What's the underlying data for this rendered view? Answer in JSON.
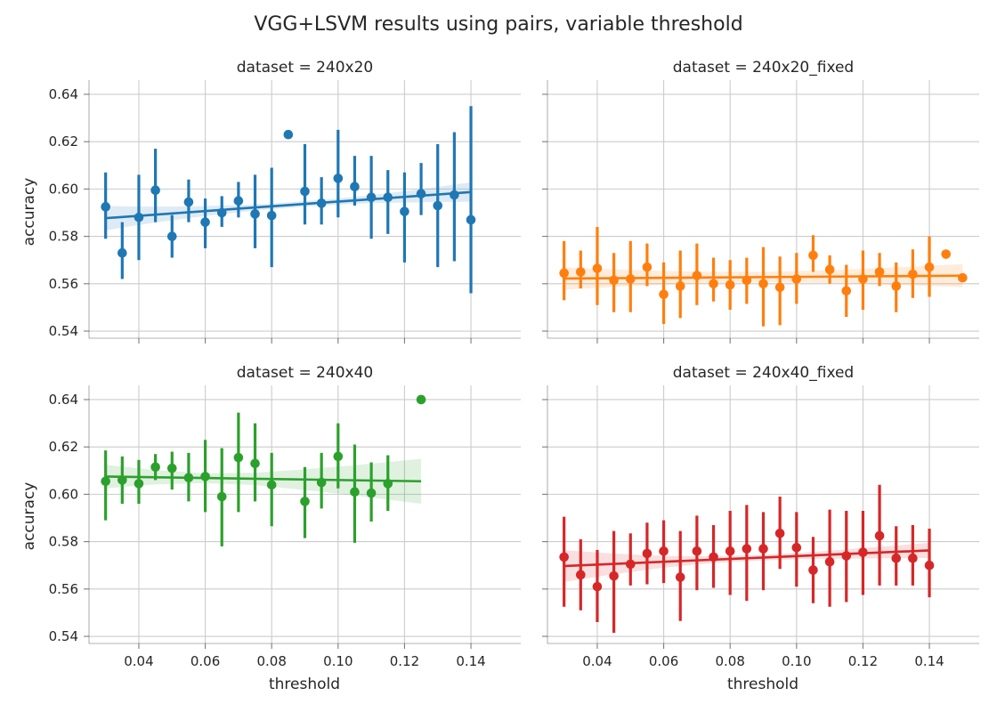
{
  "figure": {
    "title": "VGG+LSVM results using pairs, variable threshold",
    "xlabel": "threshold",
    "ylabel": "accuracy"
  },
  "chart_data": [
    {
      "type": "scatter",
      "title": "dataset = 240x20",
      "color": "#1f77b4",
      "xlim": [
        0.025,
        0.155
      ],
      "ylim": [
        0.537,
        0.646
      ],
      "xticks": [
        0.04,
        0.06,
        0.08,
        0.1,
        0.12,
        0.14
      ],
      "xtick_labels": [
        "0.04",
        "0.06",
        "0.08",
        "0.10",
        "0.12",
        "0.14"
      ],
      "yticks": [
        0.54,
        0.56,
        0.58,
        0.6,
        0.62,
        0.64
      ],
      "ytick_labels": [
        "0.54",
        "0.56",
        "0.58",
        "0.60",
        "0.62",
        "0.64"
      ],
      "points": [
        {
          "x": 0.03,
          "y": 0.5925,
          "lo": 0.579,
          "hi": 0.607
        },
        {
          "x": 0.035,
          "y": 0.573,
          "lo": 0.562,
          "hi": 0.586
        },
        {
          "x": 0.04,
          "y": 0.588,
          "lo": 0.57,
          "hi": 0.606
        },
        {
          "x": 0.045,
          "y": 0.5995,
          "lo": 0.586,
          "hi": 0.617
        },
        {
          "x": 0.05,
          "y": 0.58,
          "lo": 0.571,
          "hi": 0.589
        },
        {
          "x": 0.055,
          "y": 0.5945,
          "lo": 0.586,
          "hi": 0.604
        },
        {
          "x": 0.06,
          "y": 0.586,
          "lo": 0.575,
          "hi": 0.596
        },
        {
          "x": 0.065,
          "y": 0.59,
          "lo": 0.584,
          "hi": 0.597
        },
        {
          "x": 0.07,
          "y": 0.595,
          "lo": 0.588,
          "hi": 0.603
        },
        {
          "x": 0.075,
          "y": 0.5895,
          "lo": 0.575,
          "hi": 0.606
        },
        {
          "x": 0.08,
          "y": 0.5888,
          "lo": 0.567,
          "hi": 0.609
        },
        {
          "x": 0.085,
          "y": 0.623,
          "lo": 0.623,
          "hi": 0.623
        },
        {
          "x": 0.09,
          "y": 0.599,
          "lo": 0.585,
          "hi": 0.619
        },
        {
          "x": 0.095,
          "y": 0.594,
          "lo": 0.585,
          "hi": 0.605
        },
        {
          "x": 0.1,
          "y": 0.6045,
          "lo": 0.588,
          "hi": 0.625
        },
        {
          "x": 0.105,
          "y": 0.601,
          "lo": 0.593,
          "hi": 0.614
        },
        {
          "x": 0.11,
          "y": 0.5965,
          "lo": 0.579,
          "hi": 0.614
        },
        {
          "x": 0.115,
          "y": 0.5965,
          "lo": 0.581,
          "hi": 0.608
        },
        {
          "x": 0.12,
          "y": 0.5905,
          "lo": 0.569,
          "hi": 0.607
        },
        {
          "x": 0.125,
          "y": 0.598,
          "lo": 0.589,
          "hi": 0.611
        },
        {
          "x": 0.13,
          "y": 0.593,
          "lo": 0.567,
          "hi": 0.619
        },
        {
          "x": 0.135,
          "y": 0.5975,
          "lo": 0.5695,
          "hi": 0.624
        },
        {
          "x": 0.14,
          "y": 0.587,
          "lo": 0.556,
          "hi": 0.635
        }
      ],
      "regression": {
        "x": [
          0.03,
          0.04,
          0.05,
          0.06,
          0.07,
          0.08,
          0.09,
          0.1,
          0.11,
          0.12,
          0.13,
          0.14
        ],
        "y": [
          0.5877,
          0.5887,
          0.5897,
          0.5907,
          0.5917,
          0.5927,
          0.5937,
          0.5947,
          0.5957,
          0.5967,
          0.5977,
          0.5987
        ],
        "lo": [
          0.5825,
          0.5848,
          0.5868,
          0.5886,
          0.5902,
          0.5915,
          0.5925,
          0.5934,
          0.594,
          0.5943,
          0.5945,
          0.5946
        ],
        "hi": [
          0.5929,
          0.5926,
          0.5926,
          0.5928,
          0.5932,
          0.5939,
          0.5949,
          0.596,
          0.5974,
          0.5991,
          0.6009,
          0.6028
        ]
      }
    },
    {
      "type": "scatter",
      "title": "dataset = 240x20_fixed",
      "color": "#ff7f0e",
      "xlim": [
        0.025,
        0.155
      ],
      "ylim": [
        0.537,
        0.646
      ],
      "xticks": [
        0.04,
        0.06,
        0.08,
        0.1,
        0.12,
        0.14
      ],
      "xtick_labels": [
        "0.04",
        "0.06",
        "0.08",
        "0.10",
        "0.12",
        "0.14"
      ],
      "yticks": [
        0.54,
        0.56,
        0.58,
        0.6,
        0.62,
        0.64
      ],
      "ytick_labels": [
        "0.54",
        "0.56",
        "0.58",
        "0.60",
        "0.62",
        "0.64"
      ],
      "points": [
        {
          "x": 0.03,
          "y": 0.5645,
          "lo": 0.553,
          "hi": 0.578
        },
        {
          "x": 0.035,
          "y": 0.565,
          "lo": 0.558,
          "hi": 0.574
        },
        {
          "x": 0.04,
          "y": 0.5665,
          "lo": 0.551,
          "hi": 0.584
        },
        {
          "x": 0.045,
          "y": 0.5615,
          "lo": 0.548,
          "hi": 0.573
        },
        {
          "x": 0.05,
          "y": 0.562,
          "lo": 0.548,
          "hi": 0.578
        },
        {
          "x": 0.055,
          "y": 0.567,
          "lo": 0.559,
          "hi": 0.577
        },
        {
          "x": 0.06,
          "y": 0.5555,
          "lo": 0.543,
          "hi": 0.569
        },
        {
          "x": 0.065,
          "y": 0.559,
          "lo": 0.5455,
          "hi": 0.574
        },
        {
          "x": 0.07,
          "y": 0.5635,
          "lo": 0.551,
          "hi": 0.577
        },
        {
          "x": 0.075,
          "y": 0.56,
          "lo": 0.5525,
          "hi": 0.571
        },
        {
          "x": 0.08,
          "y": 0.5595,
          "lo": 0.549,
          "hi": 0.57
        },
        {
          "x": 0.085,
          "y": 0.5615,
          "lo": 0.5515,
          "hi": 0.571
        },
        {
          "x": 0.09,
          "y": 0.56,
          "lo": 0.542,
          "hi": 0.5755
        },
        {
          "x": 0.095,
          "y": 0.5585,
          "lo": 0.5425,
          "hi": 0.5715
        },
        {
          "x": 0.1,
          "y": 0.562,
          "lo": 0.5515,
          "hi": 0.573
        },
        {
          "x": 0.105,
          "y": 0.572,
          "lo": 0.565,
          "hi": 0.5805
        },
        {
          "x": 0.11,
          "y": 0.566,
          "lo": 0.56,
          "hi": 0.572
        },
        {
          "x": 0.115,
          "y": 0.557,
          "lo": 0.546,
          "hi": 0.568
        },
        {
          "x": 0.12,
          "y": 0.562,
          "lo": 0.549,
          "hi": 0.574
        },
        {
          "x": 0.125,
          "y": 0.565,
          "lo": 0.559,
          "hi": 0.573
        },
        {
          "x": 0.13,
          "y": 0.559,
          "lo": 0.548,
          "hi": 0.569
        },
        {
          "x": 0.135,
          "y": 0.564,
          "lo": 0.554,
          "hi": 0.5745
        },
        {
          "x": 0.14,
          "y": 0.567,
          "lo": 0.5545,
          "hi": 0.58
        },
        {
          "x": 0.145,
          "y": 0.5725,
          "lo": 0.5725,
          "hi": 0.5725
        },
        {
          "x": 0.15,
          "y": 0.5625,
          "lo": 0.5625,
          "hi": 0.5625
        }
      ],
      "regression": {
        "x": [
          0.03,
          0.05,
          0.07,
          0.09,
          0.11,
          0.13,
          0.15
        ],
        "y": [
          0.5622,
          0.5624,
          0.5626,
          0.5628,
          0.563,
          0.5632,
          0.5634
        ],
        "lo": [
          0.5575,
          0.559,
          0.5601,
          0.5606,
          0.5603,
          0.5595,
          0.5585
        ],
        "hi": [
          0.5669,
          0.5658,
          0.5651,
          0.565,
          0.5657,
          0.5669,
          0.5683
        ]
      }
    },
    {
      "type": "scatter",
      "title": "dataset = 240x40",
      "color": "#2ca02c",
      "xlim": [
        0.025,
        0.155
      ],
      "ylim": [
        0.537,
        0.646
      ],
      "xticks": [
        0.04,
        0.06,
        0.08,
        0.1,
        0.12,
        0.14
      ],
      "xtick_labels": [
        "0.04",
        "0.06",
        "0.08",
        "0.10",
        "0.12",
        "0.14"
      ],
      "yticks": [
        0.54,
        0.56,
        0.58,
        0.6,
        0.62,
        0.64
      ],
      "ytick_labels": [
        "0.54",
        "0.56",
        "0.58",
        "0.60",
        "0.62",
        "0.64"
      ],
      "points": [
        {
          "x": 0.03,
          "y": 0.6055,
          "lo": 0.589,
          "hi": 0.6185
        },
        {
          "x": 0.035,
          "y": 0.606,
          "lo": 0.596,
          "hi": 0.616
        },
        {
          "x": 0.04,
          "y": 0.6045,
          "lo": 0.596,
          "hi": 0.6145
        },
        {
          "x": 0.045,
          "y": 0.6115,
          "lo": 0.606,
          "hi": 0.617
        },
        {
          "x": 0.05,
          "y": 0.611,
          "lo": 0.602,
          "hi": 0.618
        },
        {
          "x": 0.055,
          "y": 0.607,
          "lo": 0.597,
          "hi": 0.6175
        },
        {
          "x": 0.06,
          "y": 0.6075,
          "lo": 0.5925,
          "hi": 0.623
        },
        {
          "x": 0.065,
          "y": 0.599,
          "lo": 0.578,
          "hi": 0.6195
        },
        {
          "x": 0.07,
          "y": 0.6155,
          "lo": 0.5925,
          "hi": 0.6345
        },
        {
          "x": 0.075,
          "y": 0.613,
          "lo": 0.597,
          "hi": 0.63
        },
        {
          "x": 0.08,
          "y": 0.604,
          "lo": 0.5865,
          "hi": 0.6175
        },
        {
          "x": 0.09,
          "y": 0.597,
          "lo": 0.5815,
          "hi": 0.6115
        },
        {
          "x": 0.095,
          "y": 0.605,
          "lo": 0.594,
          "hi": 0.6175
        },
        {
          "x": 0.1,
          "y": 0.616,
          "lo": 0.6025,
          "hi": 0.63
        },
        {
          "x": 0.105,
          "y": 0.601,
          "lo": 0.5795,
          "hi": 0.621
        },
        {
          "x": 0.11,
          "y": 0.6005,
          "lo": 0.5885,
          "hi": 0.6135
        },
        {
          "x": 0.115,
          "y": 0.6045,
          "lo": 0.593,
          "hi": 0.6165
        },
        {
          "x": 0.125,
          "y": 0.64,
          "lo": 0.64,
          "hi": 0.64
        }
      ],
      "regression": {
        "x": [
          0.03,
          0.045,
          0.06,
          0.075,
          0.09,
          0.105,
          0.125
        ],
        "y": [
          0.6075,
          0.6072,
          0.6068,
          0.6065,
          0.6062,
          0.6059,
          0.6055
        ],
        "lo": [
          0.6025,
          0.6042,
          0.6047,
          0.6039,
          0.6018,
          0.5995,
          0.596
        ],
        "hi": [
          0.6125,
          0.6102,
          0.6089,
          0.6091,
          0.6106,
          0.6123,
          0.615
        ]
      }
    },
    {
      "type": "scatter",
      "title": "dataset = 240x40_fixed",
      "color": "#d62728",
      "xlim": [
        0.025,
        0.155
      ],
      "ylim": [
        0.537,
        0.646
      ],
      "xticks": [
        0.04,
        0.06,
        0.08,
        0.1,
        0.12,
        0.14
      ],
      "xtick_labels": [
        "0.04",
        "0.06",
        "0.08",
        "0.10",
        "0.12",
        "0.14"
      ],
      "yticks": [
        0.54,
        0.56,
        0.58,
        0.6,
        0.62,
        0.64
      ],
      "ytick_labels": [
        "0.54",
        "0.56",
        "0.58",
        "0.60",
        "0.62",
        "0.64"
      ],
      "points": [
        {
          "x": 0.03,
          "y": 0.5735,
          "lo": 0.5525,
          "hi": 0.5905
        },
        {
          "x": 0.035,
          "y": 0.566,
          "lo": 0.551,
          "hi": 0.581
        },
        {
          "x": 0.04,
          "y": 0.561,
          "lo": 0.546,
          "hi": 0.5765
        },
        {
          "x": 0.045,
          "y": 0.5655,
          "lo": 0.5415,
          "hi": 0.5845
        },
        {
          "x": 0.05,
          "y": 0.5705,
          "lo": 0.5615,
          "hi": 0.5835
        },
        {
          "x": 0.055,
          "y": 0.575,
          "lo": 0.562,
          "hi": 0.588
        },
        {
          "x": 0.06,
          "y": 0.576,
          "lo": 0.5625,
          "hi": 0.589
        },
        {
          "x": 0.065,
          "y": 0.565,
          "lo": 0.5465,
          "hi": 0.5845
        },
        {
          "x": 0.07,
          "y": 0.576,
          "lo": 0.5595,
          "hi": 0.591
        },
        {
          "x": 0.075,
          "y": 0.5735,
          "lo": 0.5605,
          "hi": 0.587
        },
        {
          "x": 0.08,
          "y": 0.576,
          "lo": 0.5575,
          "hi": 0.593
        },
        {
          "x": 0.085,
          "y": 0.577,
          "lo": 0.555,
          "hi": 0.5955
        },
        {
          "x": 0.09,
          "y": 0.577,
          "lo": 0.5595,
          "hi": 0.5925
        },
        {
          "x": 0.095,
          "y": 0.5835,
          "lo": 0.5685,
          "hi": 0.599
        },
        {
          "x": 0.1,
          "y": 0.5775,
          "lo": 0.561,
          "hi": 0.5925
        },
        {
          "x": 0.105,
          "y": 0.568,
          "lo": 0.554,
          "hi": 0.582
        },
        {
          "x": 0.11,
          "y": 0.5715,
          "lo": 0.5525,
          "hi": 0.5935
        },
        {
          "x": 0.115,
          "y": 0.574,
          "lo": 0.5545,
          "hi": 0.593
        },
        {
          "x": 0.12,
          "y": 0.5755,
          "lo": 0.5575,
          "hi": 0.593
        },
        {
          "x": 0.125,
          "y": 0.5825,
          "lo": 0.5615,
          "hi": 0.604
        },
        {
          "x": 0.13,
          "y": 0.573,
          "lo": 0.5615,
          "hi": 0.5865
        },
        {
          "x": 0.135,
          "y": 0.573,
          "lo": 0.5615,
          "hi": 0.587
        },
        {
          "x": 0.14,
          "y": 0.57,
          "lo": 0.5565,
          "hi": 0.5855
        }
      ],
      "regression": {
        "x": [
          0.03,
          0.04,
          0.05,
          0.06,
          0.07,
          0.08,
          0.09,
          0.1,
          0.11,
          0.12,
          0.13,
          0.14
        ],
        "y": [
          0.5697,
          0.5703,
          0.5709,
          0.5715,
          0.5721,
          0.5727,
          0.5733,
          0.5739,
          0.5745,
          0.5751,
          0.5757,
          0.5763
        ],
        "lo": [
          0.563,
          0.5652,
          0.5672,
          0.569,
          0.5704,
          0.5714,
          0.5721,
          0.5726,
          0.5728,
          0.5729,
          0.573,
          0.5731
        ],
        "hi": [
          0.5764,
          0.5754,
          0.5746,
          0.574,
          0.5738,
          0.574,
          0.5745,
          0.5752,
          0.5762,
          0.5773,
          0.5784,
          0.5795
        ]
      }
    }
  ]
}
